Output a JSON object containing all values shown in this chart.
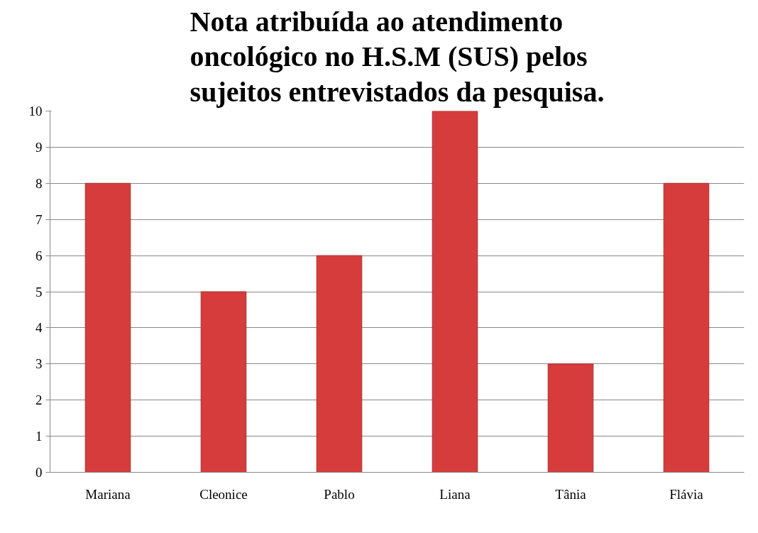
{
  "chart_data": {
    "type": "bar",
    "title": "Nota atribuída ao atendimento oncológico no H.S.M (SUS) pelos sujeitos entrevistados da pesquisa.",
    "categories": [
      "Mariana",
      "Cleonice",
      "Pablo",
      "Liana",
      "Tânia",
      "Flávia"
    ],
    "values": [
      8,
      5,
      6,
      10,
      3,
      8
    ],
    "color": "#d63c3c",
    "ylim": [
      0,
      10
    ],
    "yticks": [
      0,
      1,
      2,
      3,
      4,
      5,
      6,
      7,
      8,
      9,
      10
    ],
    "grid": "y"
  }
}
